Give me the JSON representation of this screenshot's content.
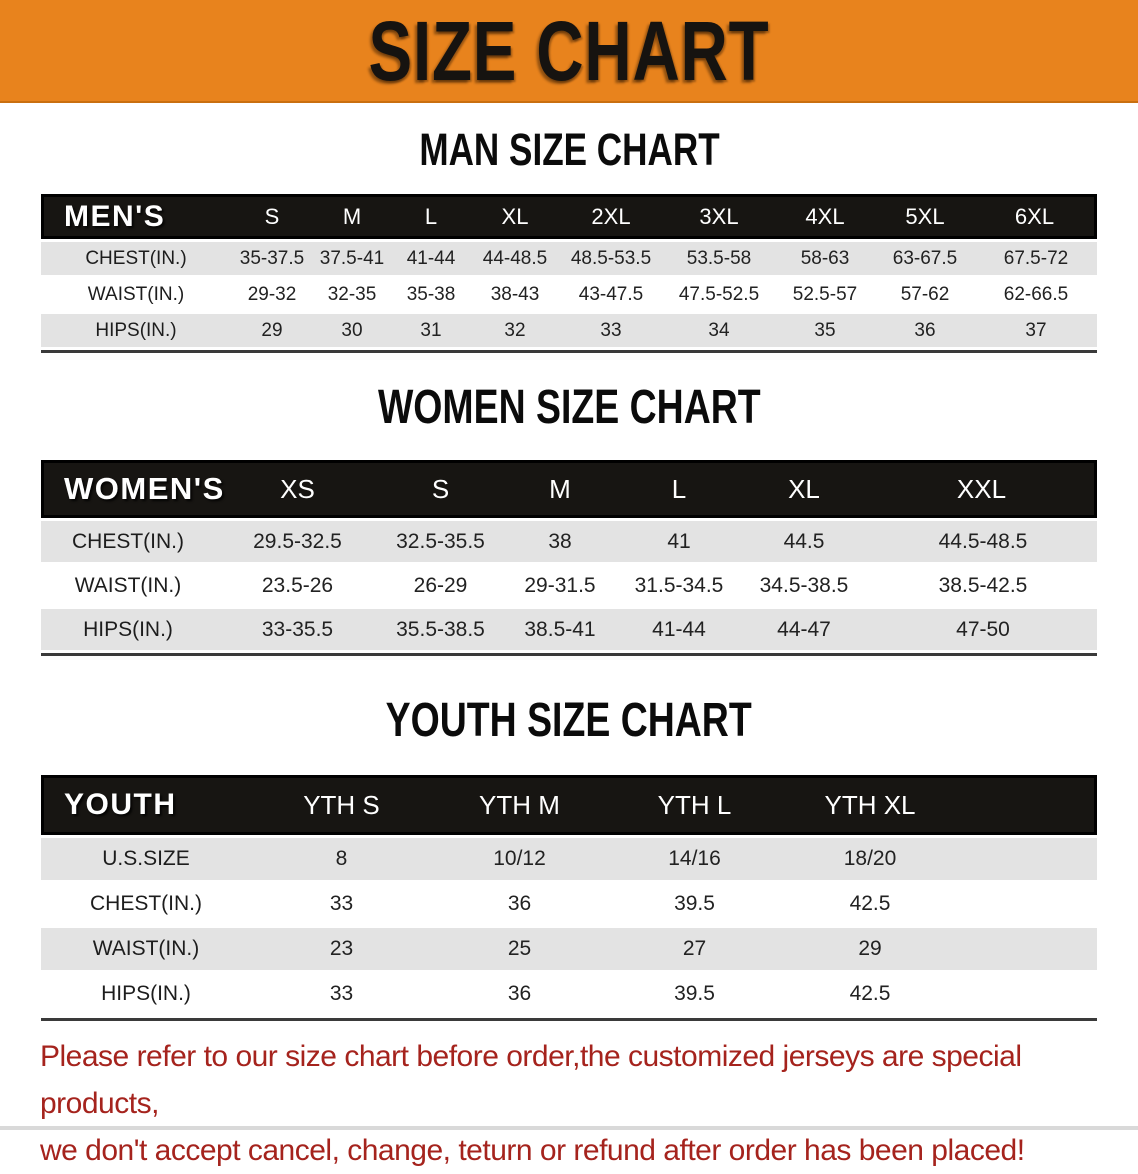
{
  "banner": {
    "title": "SIZE CHART",
    "bg_color": "#e8831d",
    "text_color": "#161310"
  },
  "colors": {
    "header_bar": "#171512",
    "row_alt_gray": "#e3e3e3",
    "disclaimer_red": "#a5231d"
  },
  "sections": [
    {
      "id": "men",
      "title": "MAN SIZE CHART",
      "corner_label": "MEN'S",
      "columns": [
        "S",
        "M",
        "L",
        "XL",
        "2XL",
        "3XL",
        "4XL",
        "5XL",
        "6XL"
      ],
      "rows": [
        {
          "label": "CHEST(IN.)",
          "values": [
            "35-37.5",
            "37.5-41",
            "41-44",
            "44-48.5",
            "48.5-53.5",
            "53.5-58",
            "58-63",
            "63-67.5",
            "67.5-72"
          ]
        },
        {
          "label": "WAIST(IN.)",
          "values": [
            "29-32",
            "32-35",
            "35-38",
            "38-43",
            "43-47.5",
            "47.5-52.5",
            "52.5-57",
            "57-62",
            "62-66.5"
          ]
        },
        {
          "label": "HIPS(IN.)",
          "values": [
            "29",
            "30",
            "31",
            "32",
            "33",
            "34",
            "35",
            "36",
            "37"
          ]
        }
      ]
    },
    {
      "id": "women",
      "title": "WOMEN SIZE CHART",
      "corner_label": "WOMEN'S",
      "columns": [
        "XS",
        "S",
        "M",
        "L",
        "XL",
        "XXL"
      ],
      "rows": [
        {
          "label": "CHEST(IN.)",
          "values": [
            "29.5-32.5",
            "32.5-35.5",
            "38",
            "41",
            "44.5",
            "44.5-48.5"
          ]
        },
        {
          "label": "WAIST(IN.)",
          "values": [
            "23.5-26",
            "26-29",
            "29-31.5",
            "31.5-34.5",
            "34.5-38.5",
            "38.5-42.5"
          ]
        },
        {
          "label": "HIPS(IN.)",
          "values": [
            "33-35.5",
            "35.5-38.5",
            "38.5-41",
            "41-44",
            "44-47",
            "47-50"
          ]
        }
      ]
    },
    {
      "id": "youth",
      "title": "YOUTH SIZE CHART",
      "corner_label": "YOUTH",
      "columns": [
        "YTH S",
        "YTH M",
        "YTH L",
        "YTH XL"
      ],
      "rows": [
        {
          "label": "U.S.SIZE",
          "values": [
            "8",
            "10/12",
            "14/16",
            "18/20"
          ]
        },
        {
          "label": "CHEST(IN.)",
          "values": [
            "33",
            "36",
            "39.5",
            "42.5"
          ]
        },
        {
          "label": "WAIST(IN.)",
          "values": [
            "23",
            "25",
            "27",
            "29"
          ]
        },
        {
          "label": "HIPS(IN.)",
          "values": [
            "33",
            "36",
            "39.5",
            "42.5"
          ]
        }
      ]
    }
  ],
  "disclaimer": {
    "line1": "Please refer to our size chart before order,the customized jerseys are special products,",
    "line2": "we don't accept cancel, change, teturn or refund after order has been placed!"
  }
}
